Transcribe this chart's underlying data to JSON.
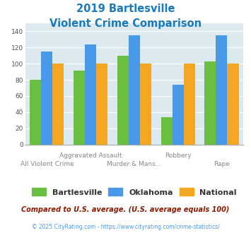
{
  "title_line1": "2019 Bartlesville",
  "title_line2": "Violent Crime Comparison",
  "title_color": "#1a7abf",
  "categories": [
    "All Violent Crime",
    "Aggravated Assault",
    "Murder & Mans...",
    "Robbery",
    "Rape"
  ],
  "bartlesville": [
    80,
    91,
    110,
    34,
    103
  ],
  "oklahoma": [
    115,
    124,
    135,
    74,
    135
  ],
  "national": [
    100,
    100,
    100,
    100,
    100
  ],
  "bartlesville_color": "#6abf40",
  "oklahoma_color": "#4899e8",
  "national_color": "#f5a623",
  "ylim": [
    0,
    150
  ],
  "yticks": [
    0,
    20,
    40,
    60,
    80,
    100,
    120,
    140
  ],
  "legend_labels": [
    "Bartlesville",
    "Oklahoma",
    "National"
  ],
  "footnote1": "Compared to U.S. average. (U.S. average equals 100)",
  "footnote2": "© 2025 CityRating.com - https://www.cityrating.com/crime-statistics/",
  "footnote1_color": "#8b1a00",
  "footnote2_color": "#4899e8",
  "background_color": "#dce9ef",
  "bar_width": 0.26
}
